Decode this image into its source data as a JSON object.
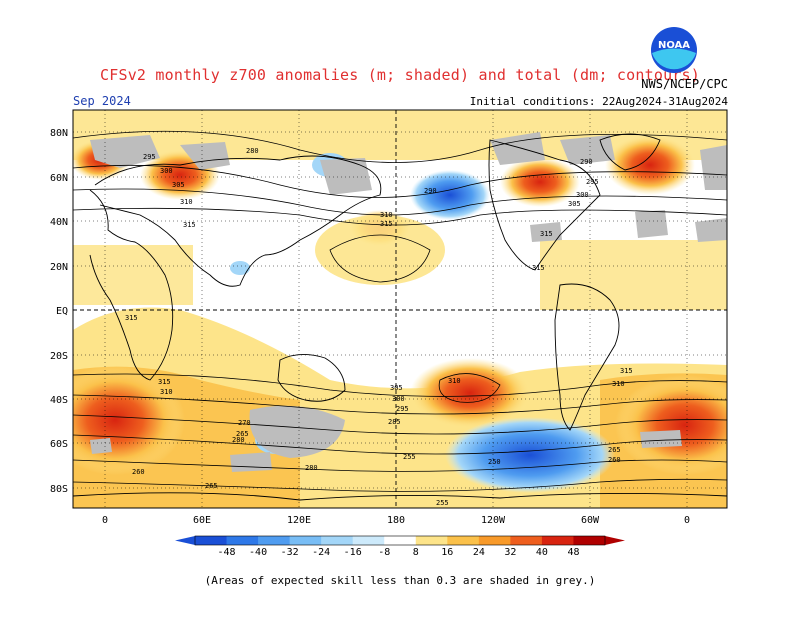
{
  "header": {
    "title": "CFSv2 monthly z700 anomalies (m; shaded) and total (dm; contours)",
    "organization": "NWS/NCEP/CPC",
    "valid_month": "Sep 2024",
    "initial_conditions": "Initial conditions: 22Aug2024-31Aug2024",
    "logo_text": "NOAA"
  },
  "map": {
    "lat_ticks": [
      "80N",
      "60N",
      "40N",
      "20N",
      "EQ",
      "20S",
      "40S",
      "60S",
      "80S"
    ],
    "lon_ticks": [
      "0",
      "60E",
      "120E",
      "180",
      "120W",
      "60W",
      "0"
    ],
    "contour_labels": [
      "295",
      "300",
      "305",
      "310",
      "315",
      "280",
      "260",
      "265",
      "270",
      "255",
      "250",
      "290",
      "285"
    ]
  },
  "colorbar": {
    "ticks": [
      "-48",
      "-40",
      "-32",
      "-24",
      "-16",
      "-8",
      "8",
      "16",
      "24",
      "32",
      "40",
      "48"
    ],
    "colors": [
      "#1a4fd6",
      "#2e78e8",
      "#4f9cf0",
      "#78bdf5",
      "#a3d6f8",
      "#cdeafb",
      "#ffffff",
      "#fde48a",
      "#fbc14a",
      "#f89a2a",
      "#ee5e1e",
      "#d82410",
      "#b00000"
    ]
  },
  "footer": {
    "note": "(Areas of expected skill less than 0.3 are shaded in grey.)"
  }
}
